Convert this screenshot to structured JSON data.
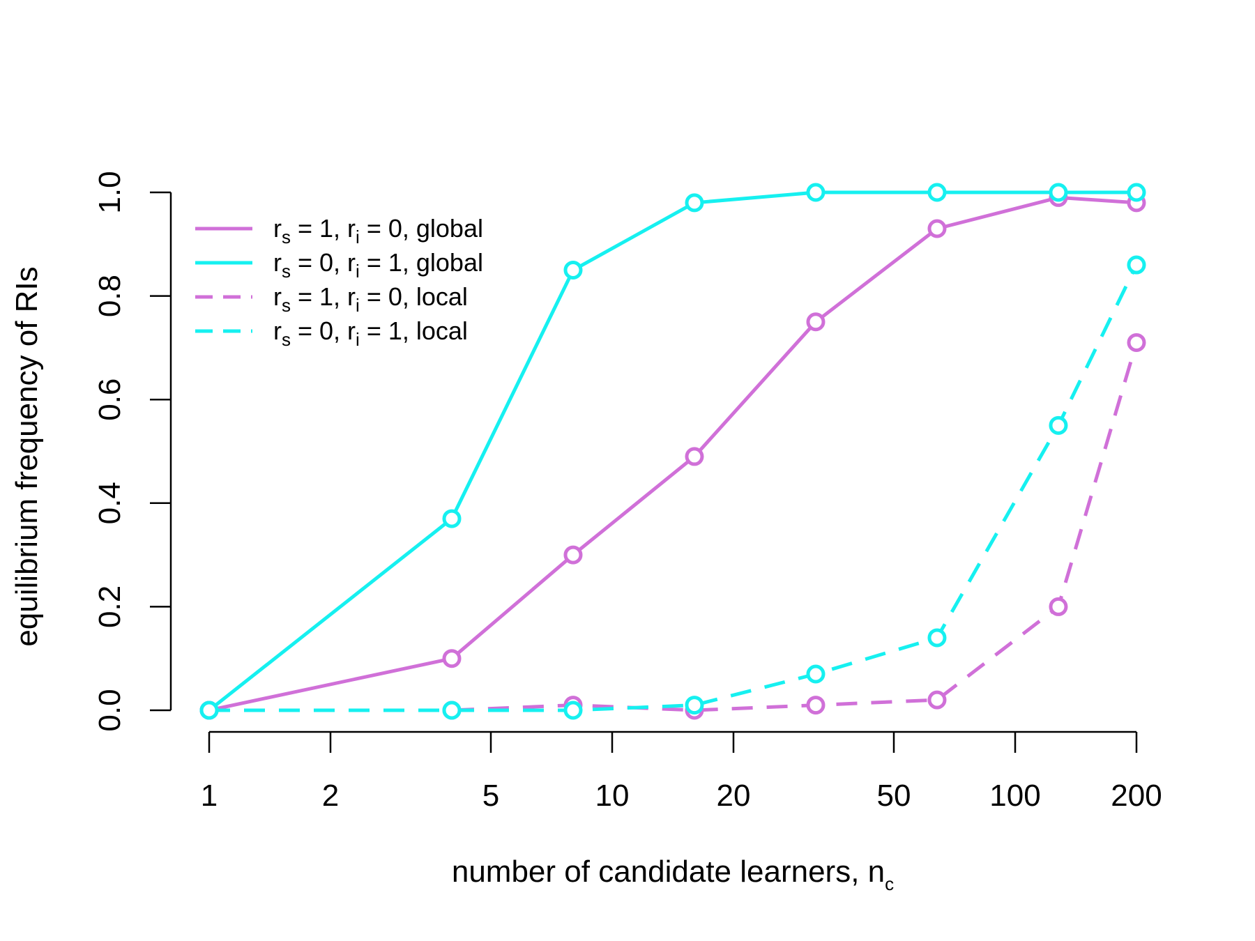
{
  "chart_data": {
    "type": "line",
    "title": "",
    "xlabel": {
      "main": "number of candidate learners, n",
      "sub": "c"
    },
    "ylabel": "equilibrium frequency of RIs",
    "x_scale": "log",
    "xlim": [
      1,
      200
    ],
    "ylim": [
      0,
      1
    ],
    "x_ticks": [
      1,
      2,
      5,
      10,
      20,
      50,
      100,
      200
    ],
    "x_tick_labels": [
      "1",
      "2",
      "5",
      "10",
      "20",
      "50",
      "100",
      "200"
    ],
    "y_ticks": [
      0,
      0.2,
      0.4,
      0.6,
      0.8,
      1
    ],
    "y_tick_labels": [
      "0.0",
      "0.2",
      "0.4",
      "0.6",
      "0.8",
      "1.0"
    ],
    "grid": false,
    "legend_position": "top-left",
    "x": [
      1,
      4,
      8,
      16,
      32,
      64,
      128,
      200
    ],
    "series": [
      {
        "name": "r_s = 1, r_i = 0, global",
        "label_parts": [
          "r",
          "s",
          " = 1, r",
          "i",
          " = 0, global"
        ],
        "color": "#d070d8",
        "dash": "solid",
        "values": [
          0,
          0.1,
          0.3,
          0.49,
          0.75,
          0.93,
          0.99,
          0.98
        ]
      },
      {
        "name": "r_s = 0, r_i = 1, global",
        "label_parts": [
          "r",
          "s",
          " = 0, r",
          "i",
          " = 1, global"
        ],
        "color": "#16f0f0",
        "dash": "solid",
        "values": [
          0,
          0.37,
          0.85,
          0.98,
          1.0,
          1.0,
          1.0,
          1.0
        ]
      },
      {
        "name": "r_s = 1, r_i = 0, local",
        "label_parts": [
          "r",
          "s",
          " = 1, r",
          "i",
          " = 0, local"
        ],
        "color": "#d070d8",
        "dash": "dashed",
        "values": [
          0,
          0,
          0.01,
          0,
          0.01,
          0.02,
          0.2,
          0.71
        ]
      },
      {
        "name": "r_s = 0, r_i = 1, local",
        "label_parts": [
          "r",
          "s",
          " = 0, r",
          "i",
          " = 1, local"
        ],
        "color": "#16f0f0",
        "dash": "dashed",
        "values": [
          0,
          0,
          0,
          0.01,
          0.07,
          0.14,
          0.55,
          0.86
        ]
      }
    ]
  }
}
